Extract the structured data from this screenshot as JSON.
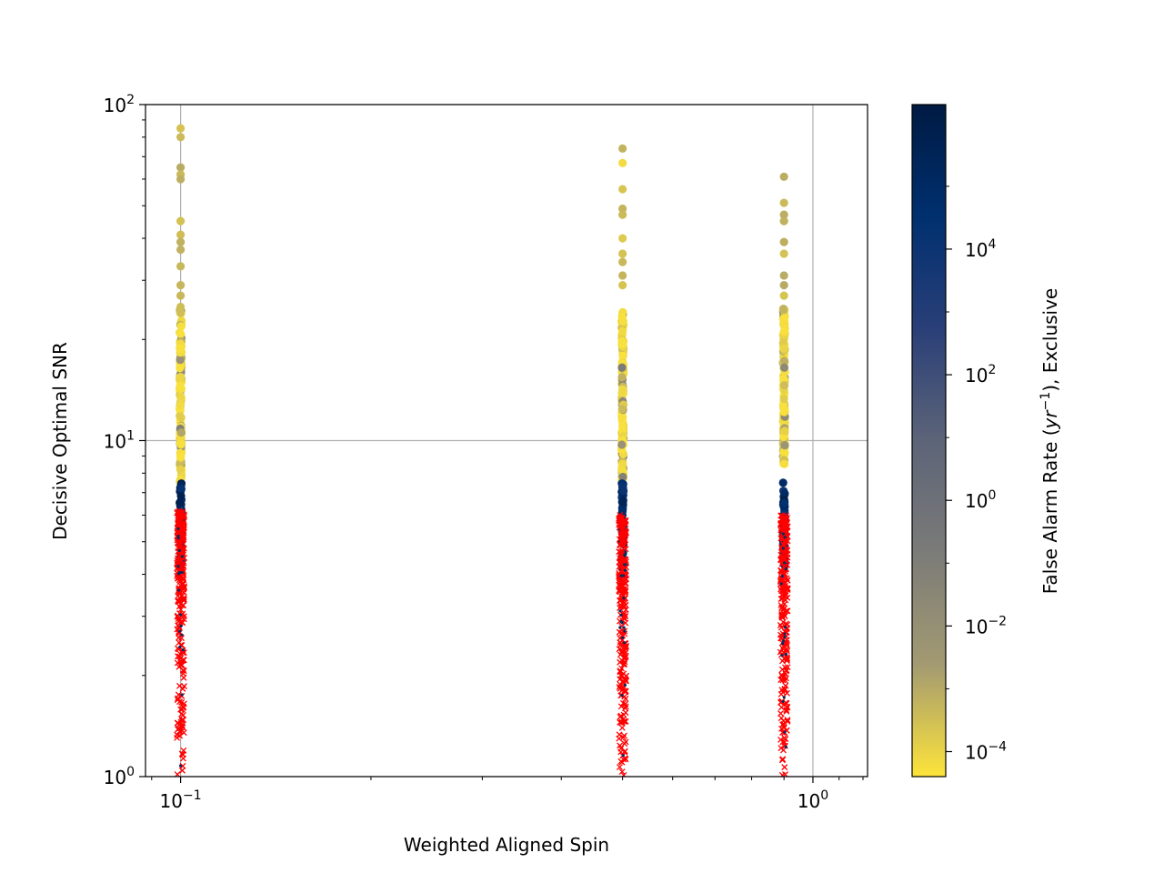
{
  "chart_data": {
    "type": "scatter",
    "title": "",
    "xlabel": "Weighted Aligned Spin",
    "ylabel": "Decisive Optimal SNR",
    "xscale": "log",
    "yscale": "log",
    "xlim": [
      0.088,
      1.22
    ],
    "ylim": [
      1,
      100
    ],
    "grid": true,
    "xticks": [
      {
        "value": 0.1,
        "base": "10",
        "exp": "−1"
      },
      {
        "value": 1,
        "base": "10",
        "exp": "0"
      }
    ],
    "yticks": [
      {
        "value": 1,
        "base": "10",
        "exp": "0"
      },
      {
        "value": 10,
        "base": "10",
        "exp": "1"
      },
      {
        "value": 100,
        "base": "10",
        "exp": "2"
      }
    ],
    "colorbar": {
      "label_main": "False Alarm Rate (",
      "label_var": "yr",
      "label_exp": "−1",
      "label_tail": "), Exclusive",
      "scale": "log",
      "range": [
        4e-05,
        2000000
      ],
      "colormap": [
        "#fde43a",
        "#a39a72",
        "#7b7b78",
        "#5c6478",
        "#2a3f78",
        "#00306f",
        "#001a43"
      ],
      "ticks": [
        {
          "value": 0.0001,
          "base": "10",
          "exp": "−4"
        },
        {
          "value": 0.01,
          "base": "10",
          "exp": "−2"
        },
        {
          "value": 1,
          "base": "10",
          "exp": "0"
        },
        {
          "value": 100,
          "base": "10",
          "exp": "2"
        },
        {
          "value": 10000,
          "base": "10",
          "exp": "4"
        }
      ]
    },
    "series": [
      {
        "marker": "filled circle, colored by false alarm rate",
        "groups": [
          {
            "x": 0.1,
            "snr_max": 85,
            "snr_min": 7.5,
            "far_high": 8,
            "far_low": 5e-05,
            "snr_top_points": [
              85,
              80,
              65,
              62,
              60,
              45,
              41,
              39,
              37,
              33,
              29,
              27,
              25,
              24
            ]
          },
          {
            "x": 0.5,
            "snr_max": 74,
            "snr_min": 7.5,
            "far_high": 5,
            "far_low": 5e-05,
            "snr_top_points": [
              74,
              67,
              56,
              49,
              47,
              40,
              36,
              34,
              31,
              29
            ]
          },
          {
            "x": 0.9,
            "snr_max": 61,
            "snr_min": 8.5,
            "far_high": 1,
            "far_low": 5e-05,
            "snr_top_points": [
              61,
              51,
              47,
              45,
              39,
              36,
              31,
              29,
              27
            ]
          }
        ],
        "dark_band": {
          "snr_min": 4.2,
          "snr_max": 7.5,
          "far_min": 5000,
          "far_max": 1000000
        }
      },
      {
        "marker": "red x (missed)",
        "color": "#ff0000",
        "groups": [
          {
            "x": 0.1,
            "snr_min": 1,
            "snr_max": 6.2
          },
          {
            "x": 0.5,
            "snr_min": 1,
            "snr_max": 6.0
          },
          {
            "x": 0.9,
            "snr_min": 1,
            "snr_max": 6.0
          }
        ]
      }
    ]
  }
}
